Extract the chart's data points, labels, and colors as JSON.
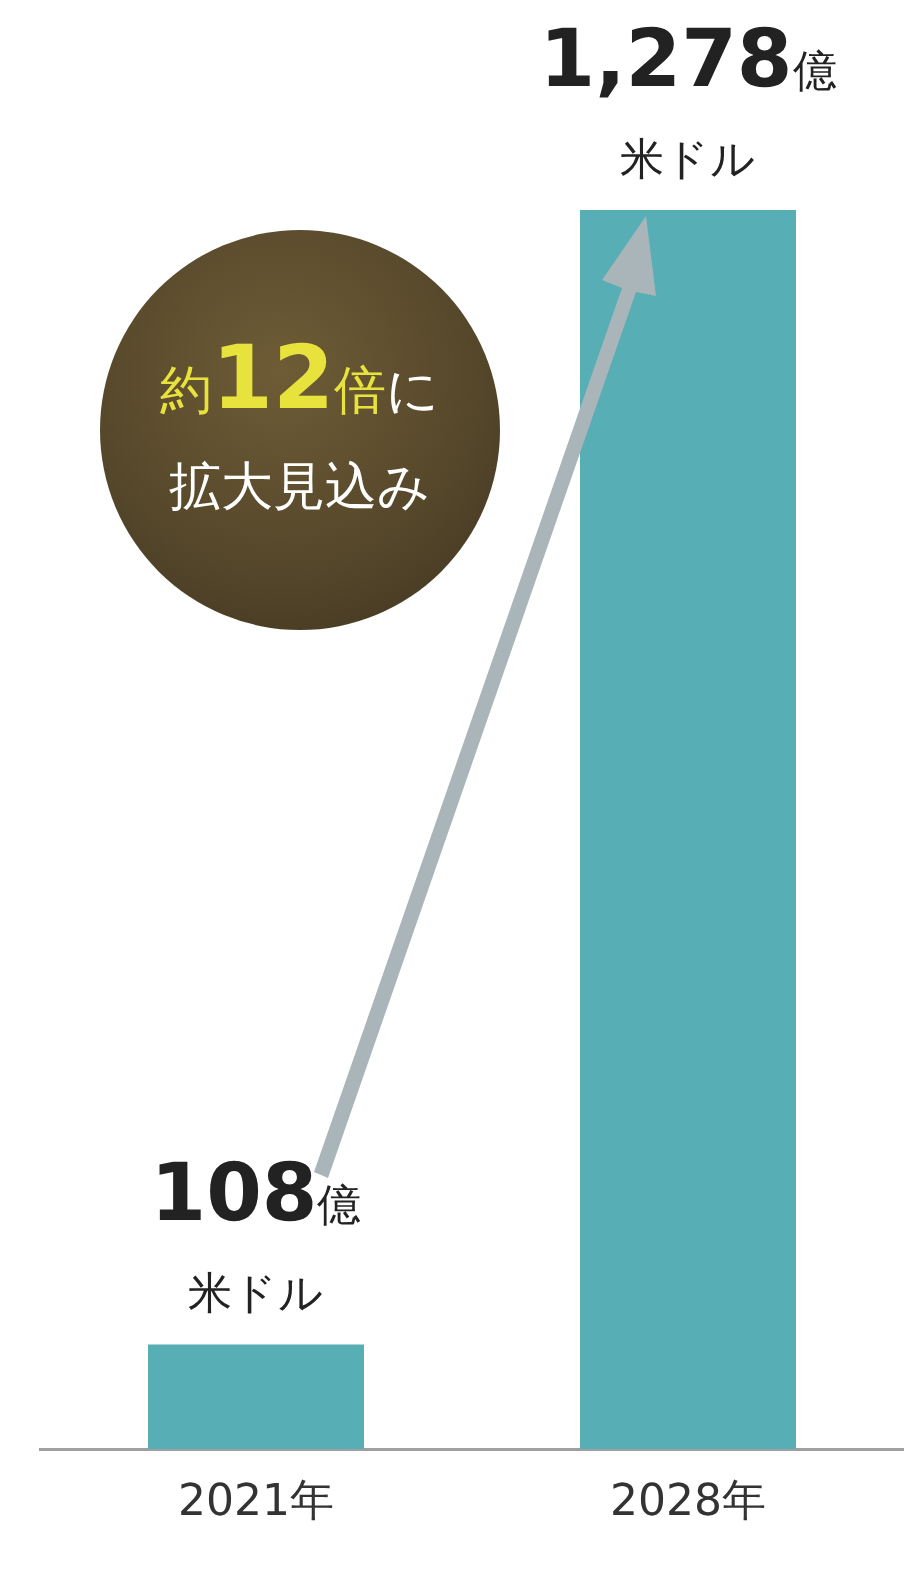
{
  "chart_data": {
    "type": "bar",
    "categories": [
      "2021年",
      "2028年"
    ],
    "values": [
      108,
      1278
    ],
    "color": "#57aeb5",
    "value_labels": [
      "108億米ドル",
      "1,278億米ドル"
    ],
    "annotations": [
      "約12倍に",
      "拡大見込み"
    ],
    "grid": false,
    "legend": false,
    "tick_labels": "x"
  }
}
